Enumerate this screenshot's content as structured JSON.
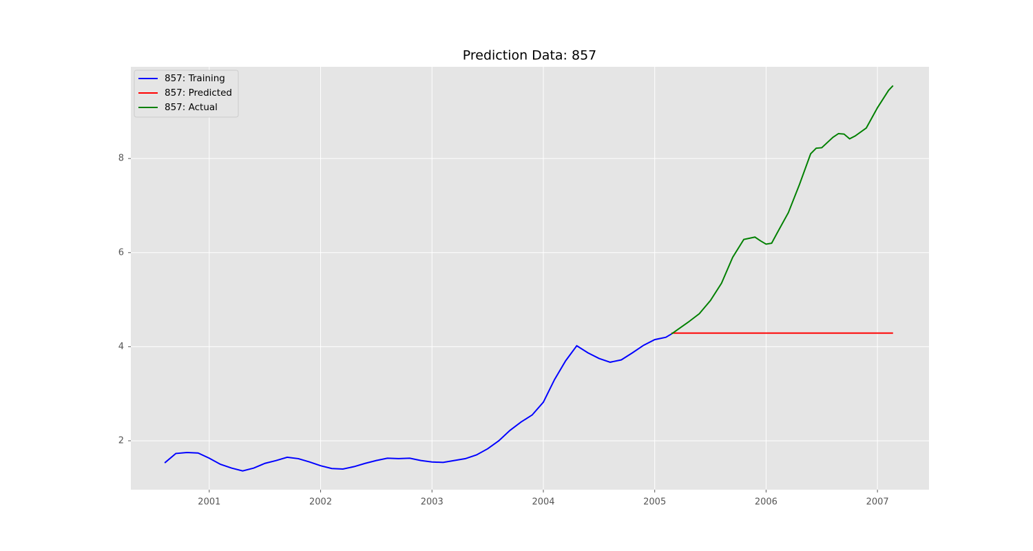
{
  "chart_data": {
    "type": "line",
    "title": "Prediction Data: 857",
    "xlim": [
      2000.296,
      2007.463
    ],
    "xticks": [
      2001,
      2002,
      2003,
      2004,
      2005,
      2006,
      2007
    ],
    "ylim": [
      0.96,
      9.95
    ],
    "yticks": [
      2,
      4,
      6,
      8
    ],
    "grid": true,
    "legend": "upper left",
    "series": [
      {
        "name": "857: Training",
        "color": "#0000ff",
        "x": [
          2000.6,
          2000.7,
          2000.8,
          2000.9,
          2001.0,
          2001.1,
          2001.2,
          2001.3,
          2001.4,
          2001.5,
          2001.6,
          2001.7,
          2001.8,
          2001.9,
          2002.0,
          2002.1,
          2002.2,
          2002.3,
          2002.4,
          2002.5,
          2002.6,
          2002.7,
          2002.8,
          2002.9,
          2003.0,
          2003.1,
          2003.2,
          2003.3,
          2003.4,
          2003.5,
          2003.6,
          2003.7,
          2003.8,
          2003.9,
          2004.0,
          2004.1,
          2004.2,
          2004.3,
          2004.4,
          2004.5,
          2004.6,
          2004.7,
          2004.8,
          2004.9,
          2005.0,
          2005.1,
          2005.15
        ],
        "values": [
          1.53,
          1.73,
          1.75,
          1.74,
          1.63,
          1.5,
          1.42,
          1.36,
          1.42,
          1.52,
          1.58,
          1.65,
          1.62,
          1.55,
          1.47,
          1.41,
          1.4,
          1.45,
          1.52,
          1.58,
          1.63,
          1.62,
          1.63,
          1.58,
          1.55,
          1.54,
          1.58,
          1.62,
          1.7,
          1.83,
          2.0,
          2.22,
          2.4,
          2.55,
          2.82,
          3.3,
          3.7,
          4.02,
          3.87,
          3.75,
          3.67,
          3.72,
          3.87,
          4.03,
          4.15,
          4.2,
          4.27
        ]
      },
      {
        "name": "857: Predicted",
        "color": "#ff0000",
        "x": [
          2005.15,
          2007.14
        ],
        "values": [
          4.29,
          4.29
        ]
      },
      {
        "name": "857: Actual",
        "color": "#008000",
        "x": [
          2005.15,
          2005.3,
          2005.4,
          2005.5,
          2005.6,
          2005.7,
          2005.8,
          2005.9,
          2005.95,
          2006.0,
          2006.05,
          2006.1,
          2006.2,
          2006.3,
          2006.4,
          2006.45,
          2006.5,
          2006.6,
          2006.65,
          2006.7,
          2006.75,
          2006.8,
          2006.9,
          2007.0,
          2007.1,
          2007.14
        ],
        "values": [
          4.27,
          4.52,
          4.7,
          4.98,
          5.35,
          5.9,
          6.28,
          6.33,
          6.25,
          6.18,
          6.2,
          6.42,
          6.85,
          7.45,
          8.1,
          8.22,
          8.23,
          8.45,
          8.53,
          8.52,
          8.42,
          8.48,
          8.65,
          9.08,
          9.45,
          9.55
        ]
      }
    ]
  }
}
